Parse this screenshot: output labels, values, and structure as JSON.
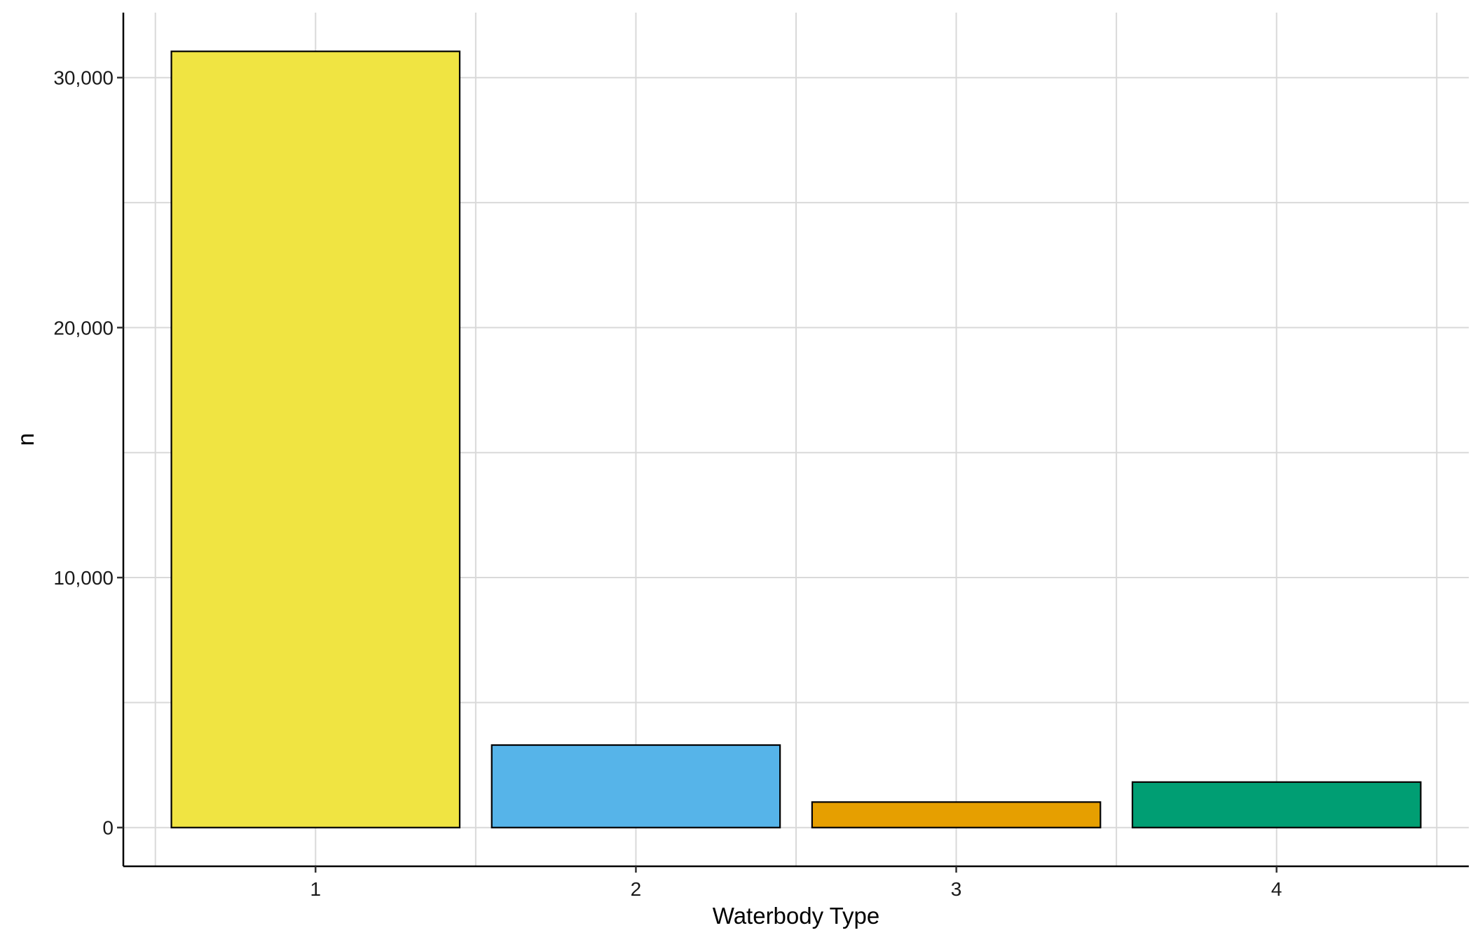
{
  "chart_data": {
    "type": "bar",
    "title": "",
    "xlabel": "Waterbody Type",
    "ylabel": "n",
    "categories": [
      "1",
      "2",
      "3",
      "4"
    ],
    "values": [
      31050,
      3300,
      1020,
      1820
    ],
    "bar_colors": [
      "#F0E442",
      "#56B4E9",
      "#E69F00",
      "#009E73"
    ],
    "bar_outline_color": "#000000",
    "ylim": [
      -1550,
      32600
    ],
    "y_major_ticks": [
      0,
      10000,
      20000,
      30000
    ],
    "y_minor_gridlines": [
      5000,
      15000,
      25000
    ],
    "y_tick_labels": [
      "0",
      "10,000",
      "20,000",
      "30,000"
    ],
    "grid": true,
    "grid_color": "#d9d9d9",
    "legend": "none"
  }
}
